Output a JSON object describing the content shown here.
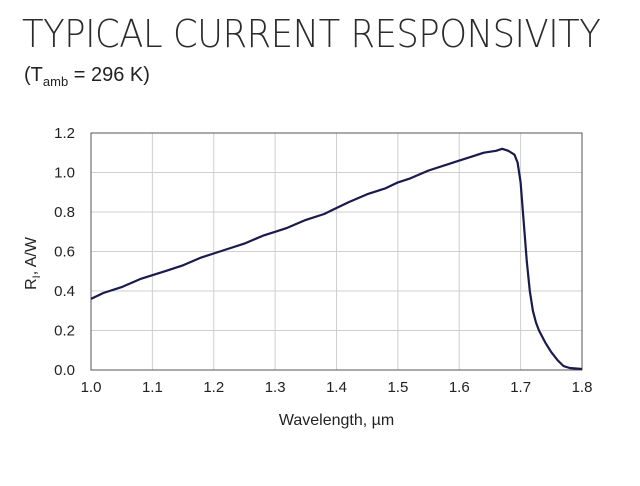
{
  "header": {
    "title": "TYPICAL CURRENT RESPONSIVITY",
    "subtitle_pre": "(T",
    "subtitle_sub": "amb",
    "subtitle_post": " = 296 K)"
  },
  "chart_data": {
    "type": "line",
    "title": "TYPICAL CURRENT RESPONSIVITY",
    "xlabel": "Wavelength, µm",
    "ylabel_main": "R",
    "ylabel_sub": "I",
    "ylabel_post": ", A/W",
    "xlim": [
      1.0,
      1.8
    ],
    "ylim": [
      0.0,
      1.2
    ],
    "xticks": [
      "1.0",
      "1.1",
      "1.2",
      "1.3",
      "1.4",
      "1.5",
      "1.6",
      "1.7",
      "1.8"
    ],
    "yticks": [
      "0.0",
      "0.2",
      "0.4",
      "0.6",
      "0.8",
      "1.0",
      "1.2"
    ],
    "grid": true,
    "line_color": "#1a1a4d",
    "series": [
      {
        "x": [
          1.0,
          1.02,
          1.05,
          1.08,
          1.1,
          1.12,
          1.15,
          1.18,
          1.2,
          1.22,
          1.25,
          1.28,
          1.3,
          1.32,
          1.35,
          1.38,
          1.4,
          1.42,
          1.45,
          1.48,
          1.5,
          1.52,
          1.55,
          1.58,
          1.6,
          1.62,
          1.64,
          1.66,
          1.67,
          1.68,
          1.69,
          1.695,
          1.7,
          1.705,
          1.71,
          1.715,
          1.72,
          1.725,
          1.73,
          1.74,
          1.75,
          1.76,
          1.77,
          1.78,
          1.8
        ],
        "y": [
          0.36,
          0.39,
          0.42,
          0.46,
          0.48,
          0.5,
          0.53,
          0.57,
          0.59,
          0.61,
          0.64,
          0.68,
          0.7,
          0.72,
          0.76,
          0.79,
          0.82,
          0.85,
          0.89,
          0.92,
          0.95,
          0.97,
          1.01,
          1.04,
          1.06,
          1.08,
          1.1,
          1.11,
          1.12,
          1.11,
          1.09,
          1.05,
          0.95,
          0.75,
          0.55,
          0.4,
          0.3,
          0.24,
          0.2,
          0.14,
          0.09,
          0.05,
          0.02,
          0.01,
          0.005
        ]
      }
    ]
  }
}
